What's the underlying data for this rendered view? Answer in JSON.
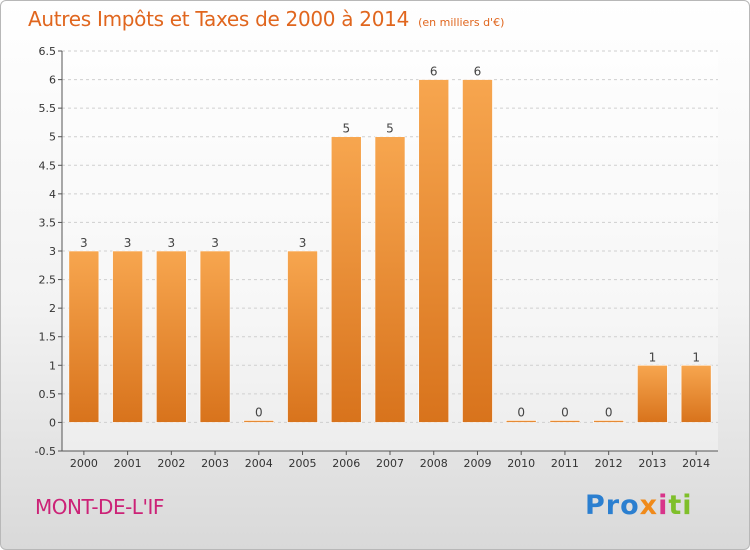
{
  "title": {
    "main": "Autres Impôts et Taxes de 2000 à 2014",
    "unit": "(en milliers d'€)"
  },
  "town": "MONT-DE-L'IF",
  "logo": {
    "p1": "Pro",
    "p2": "x",
    "p3": "i",
    "p4": "ti"
  },
  "colors": {
    "bar_light": "#f7a64f",
    "bar_dark": "#d8731c",
    "title": "#e0661e",
    "town": "#cc2277"
  },
  "chart_data": {
    "type": "bar",
    "title": "Autres Impôts et Taxes de 2000 à 2014",
    "xlabel": "",
    "ylabel": "",
    "categories": [
      "2000",
      "2001",
      "2002",
      "2003",
      "2004",
      "2005",
      "2006",
      "2007",
      "2008",
      "2009",
      "2010",
      "2011",
      "2012",
      "2013",
      "2014"
    ],
    "values": [
      3,
      3,
      3,
      3,
      0,
      3,
      5,
      5,
      6,
      6,
      0,
      0,
      0,
      1,
      1
    ],
    "labels": [
      "3",
      "3",
      "3",
      "3",
      "0",
      "3",
      "5",
      "5",
      "6",
      "6",
      "0",
      "0",
      "0",
      "1",
      "1"
    ],
    "ylim": [
      -0.5,
      6.5
    ],
    "yticks": [
      -0.5,
      0,
      0.5,
      1,
      1.5,
      2,
      2.5,
      3,
      3.5,
      4,
      4.5,
      5,
      5.5,
      6,
      6.5
    ],
    "ytick_labels": [
      "-0.5",
      "0",
      "0.5",
      "1",
      "1.5",
      "2",
      "2.5",
      "3",
      "3.5",
      "4",
      "4.5",
      "5",
      "5.5",
      "6",
      "6.5"
    ],
    "grid": true,
    "legend": "none"
  }
}
